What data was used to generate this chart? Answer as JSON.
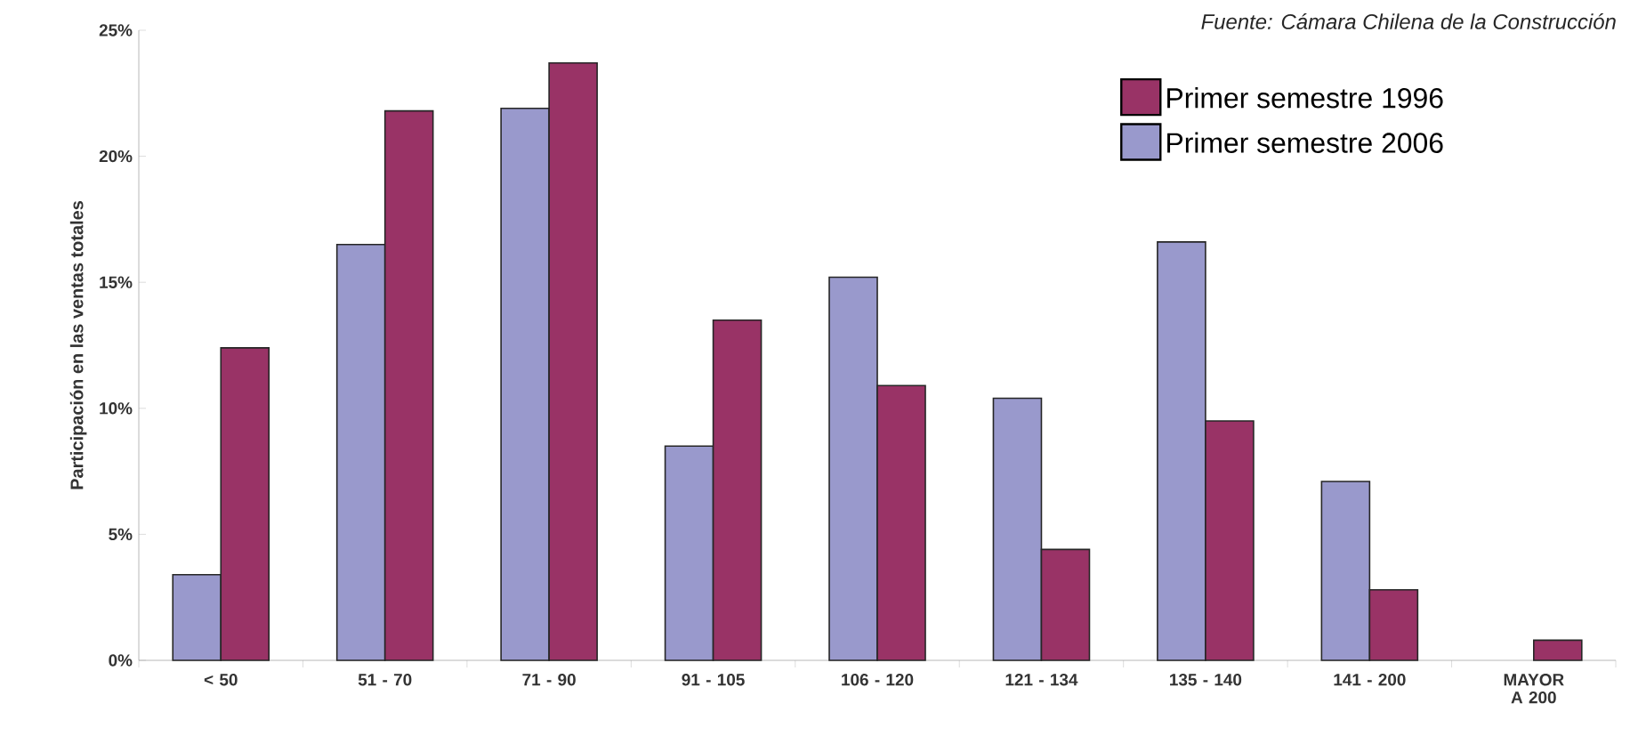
{
  "chart_data": {
    "type": "bar",
    "ylabel": "Participación en las ventas totales",
    "annotations": [
      "Fuente: Cámara Chilena de la Construcción"
    ],
    "categories": [
      "< 50",
      "51  -  70",
      "71  -  90",
      "91  -  105",
      "106  -  120",
      "121  -  134",
      "135  -  140",
      "141  -  200",
      "MAYOR A 200"
    ],
    "series": [
      {
        "name": "Primer semestre 2006",
        "color": "#9999cc",
        "values": [
          3.4,
          16.5,
          21.9,
          8.5,
          15.2,
          10.4,
          16.6,
          7.1,
          null
        ]
      },
      {
        "name": "Primer semestre 1996",
        "color": "#993366",
        "values": [
          12.4,
          21.8,
          23.7,
          13.5,
          10.9,
          4.4,
          9.5,
          2.8,
          0.8
        ]
      }
    ],
    "ylim": [
      0,
      25
    ],
    "yticks": [
      {
        "value": 0,
        "label": "0%"
      },
      {
        "value": 5,
        "label": "5%"
      },
      {
        "value": 10,
        "label": "10%"
      },
      {
        "value": 15,
        "label": "15%"
      },
      {
        "value": 20,
        "label": "20%"
      },
      {
        "value": 25,
        "label": "25%"
      }
    ],
    "grid": false,
    "legend": "top right"
  }
}
